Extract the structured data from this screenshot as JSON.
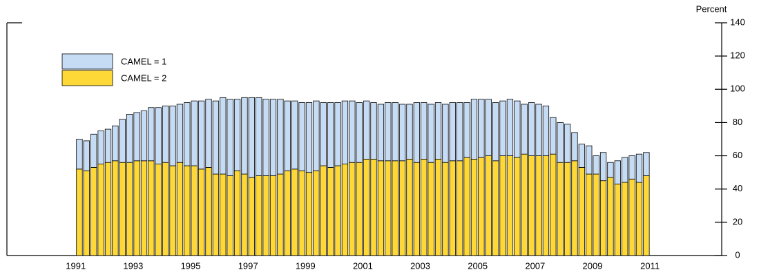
{
  "chart_data": {
    "type": "stacked_bar",
    "y_axis_label": "Percent",
    "x": [
      1991.125,
      1991.375,
      1991.625,
      1991.875,
      1992.125,
      1992.375,
      1992.625,
      1992.875,
      1993.125,
      1993.375,
      1993.625,
      1993.875,
      1994.125,
      1994.375,
      1994.625,
      1994.875,
      1995.125,
      1995.375,
      1995.625,
      1995.875,
      1996.125,
      1996.375,
      1996.625,
      1996.875,
      1997.125,
      1997.375,
      1997.625,
      1997.875,
      1998.125,
      1998.375,
      1998.625,
      1998.875,
      1999.125,
      1999.375,
      1999.625,
      1999.875,
      2000.125,
      2000.375,
      2000.625,
      2000.875,
      2001.125,
      2001.375,
      2001.625,
      2001.875,
      2002.125,
      2002.375,
      2002.625,
      2002.875,
      2003.125,
      2003.375,
      2003.625,
      2003.875,
      2004.125,
      2004.375,
      2004.625,
      2004.875,
      2005.125,
      2005.375,
      2005.625,
      2005.875,
      2006.125,
      2006.375,
      2006.625,
      2006.875,
      2007.125,
      2007.375,
      2007.625,
      2007.875,
      2008.125,
      2008.375,
      2008.625,
      2008.875,
      2009.125,
      2009.375,
      2009.625,
      2009.875,
      2010.125,
      2010.375,
      2010.625,
      2010.875
    ],
    "series": [
      {
        "name": "CAMEL = 1",
        "color": "#c6dcf5",
        "values": [
          18,
          18,
          20,
          20,
          20,
          21,
          26,
          29,
          29,
          30,
          32,
          34,
          34,
          36,
          35,
          38,
          39,
          41,
          41,
          44,
          46,
          46,
          43,
          46,
          48,
          47,
          46,
          46,
          45,
          42,
          41,
          41,
          42,
          42,
          38,
          39,
          38,
          38,
          37,
          36,
          35,
          34,
          34,
          35,
          35,
          34,
          33,
          36,
          34,
          35,
          34,
          35,
          35,
          35,
          33,
          36,
          35,
          34,
          35,
          33,
          34,
          34,
          30,
          32,
          31,
          30,
          22,
          24,
          23,
          17,
          14,
          17,
          11,
          17,
          9,
          14,
          15,
          14,
          17,
          14
        ]
      },
      {
        "name": "CAMEL = 2",
        "color": "#fdd836",
        "values": [
          52,
          51,
          53,
          55,
          56,
          57,
          56,
          56,
          57,
          57,
          57,
          55,
          56,
          54,
          56,
          54,
          54,
          52,
          53,
          49,
          49,
          48,
          51,
          49,
          47,
          48,
          48,
          48,
          49,
          51,
          52,
          51,
          50,
          51,
          54,
          53,
          54,
          55,
          56,
          56,
          58,
          58,
          57,
          57,
          57,
          57,
          58,
          56,
          58,
          56,
          58,
          56,
          57,
          57,
          59,
          58,
          59,
          60,
          57,
          60,
          60,
          59,
          61,
          60,
          60,
          60,
          61,
          56,
          56,
          57,
          53,
          49,
          49,
          45,
          47,
          43,
          44,
          46,
          44,
          48
        ]
      }
    ],
    "xlim": [
      1988.6,
      2013.5
    ],
    "xticks": [
      1991,
      1993,
      1995,
      1997,
      1999,
      2001,
      2003,
      2005,
      2007,
      2009,
      2011
    ],
    "ylim": [
      0,
      140
    ],
    "yticks": [
      0,
      20,
      40,
      60,
      80,
      100,
      120,
      140
    ],
    "legend": "upper left"
  }
}
